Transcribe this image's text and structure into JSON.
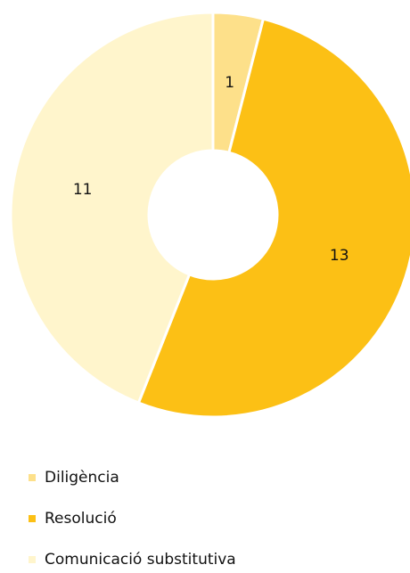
{
  "chart_data": {
    "type": "donut",
    "categories": [
      "Diligència",
      "Resolució",
      "Comunicació substitutiva"
    ],
    "values": [
      1,
      13,
      11
    ],
    "colors": [
      "#fde08a",
      "#fcc015",
      "#fff5cc"
    ]
  }
}
